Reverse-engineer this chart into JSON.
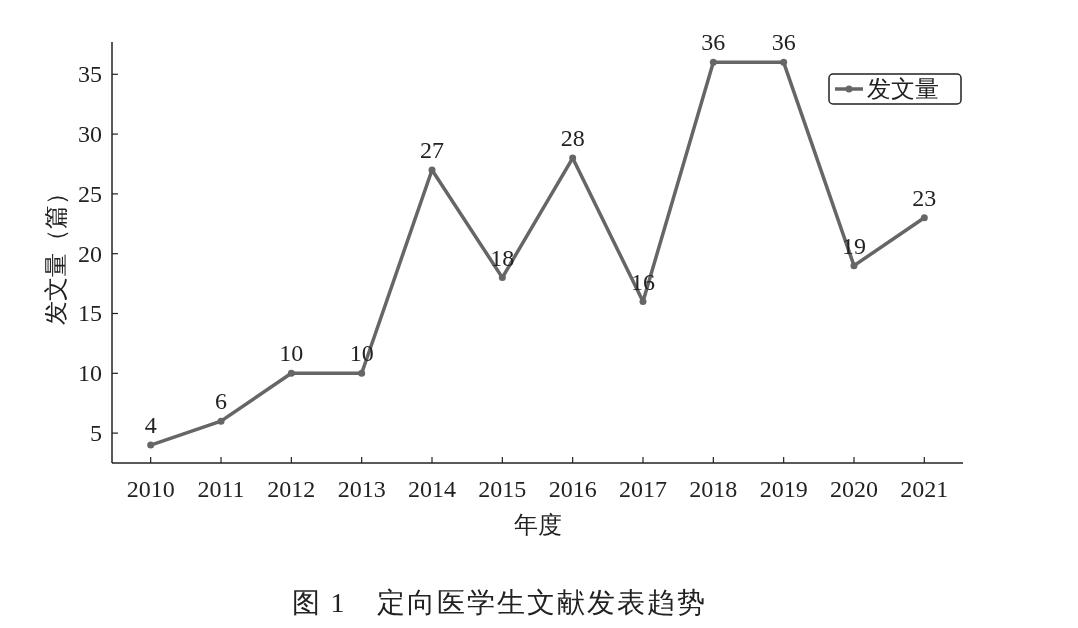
{
  "chart_data": {
    "type": "line",
    "categories": [
      "2010",
      "2011",
      "2012",
      "2013",
      "2014",
      "2015",
      "2016",
      "2017",
      "2018",
      "2019",
      "2020",
      "2021"
    ],
    "series": [
      {
        "name": "发文量",
        "color": "#666666",
        "values": [
          4,
          6,
          10,
          10,
          27,
          18,
          28,
          16,
          36,
          36,
          19,
          23
        ]
      }
    ],
    "xlabel": "年度",
    "ylabel": "发文量（篇）",
    "ylim": [
      2.5,
      37.7
    ],
    "yticks": [
      5,
      10,
      15,
      20,
      25,
      30,
      35
    ],
    "data_labels": true,
    "legend": "top right",
    "marker": "circle",
    "annotations": [
      "图 1　定向医学生文献发表趋势"
    ]
  }
}
